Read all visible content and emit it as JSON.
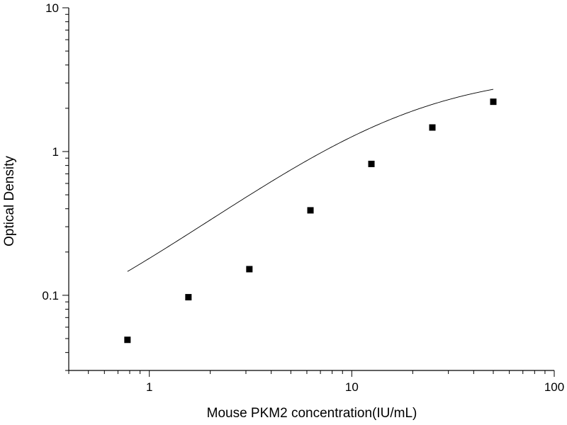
{
  "chart_data": {
    "type": "scatter",
    "xscale": "log",
    "yscale": "log",
    "xlim": [
      0.4,
      100
    ],
    "ylim": [
      0.03,
      10
    ],
    "xlabel": "Mouse PKM2 concentration(IU/mL)",
    "ylabel": "Optical Density",
    "x_ticks": [
      1,
      10,
      100
    ],
    "x_tick_labels": [
      "1",
      "10",
      "100"
    ],
    "y_ticks": [
      0.1,
      1,
      10
    ],
    "y_tick_labels": [
      "0.1",
      "1",
      "10"
    ],
    "grid": false,
    "marker": "square",
    "colors": {
      "marker": "#000000",
      "curve": "#000000",
      "axis": "#000000"
    },
    "series": [
      {
        "x": [
          0.78,
          1.56,
          3.12,
          6.25,
          12.5,
          25,
          50
        ],
        "y": [
          0.049,
          0.097,
          0.152,
          0.39,
          0.82,
          1.47,
          2.22
        ]
      }
    ],
    "fit_curve": {
      "type": "four-parameter-logistic",
      "A1": 0.03,
      "A2": 3.6,
      "x0": 18,
      "p": 1.08
    }
  }
}
